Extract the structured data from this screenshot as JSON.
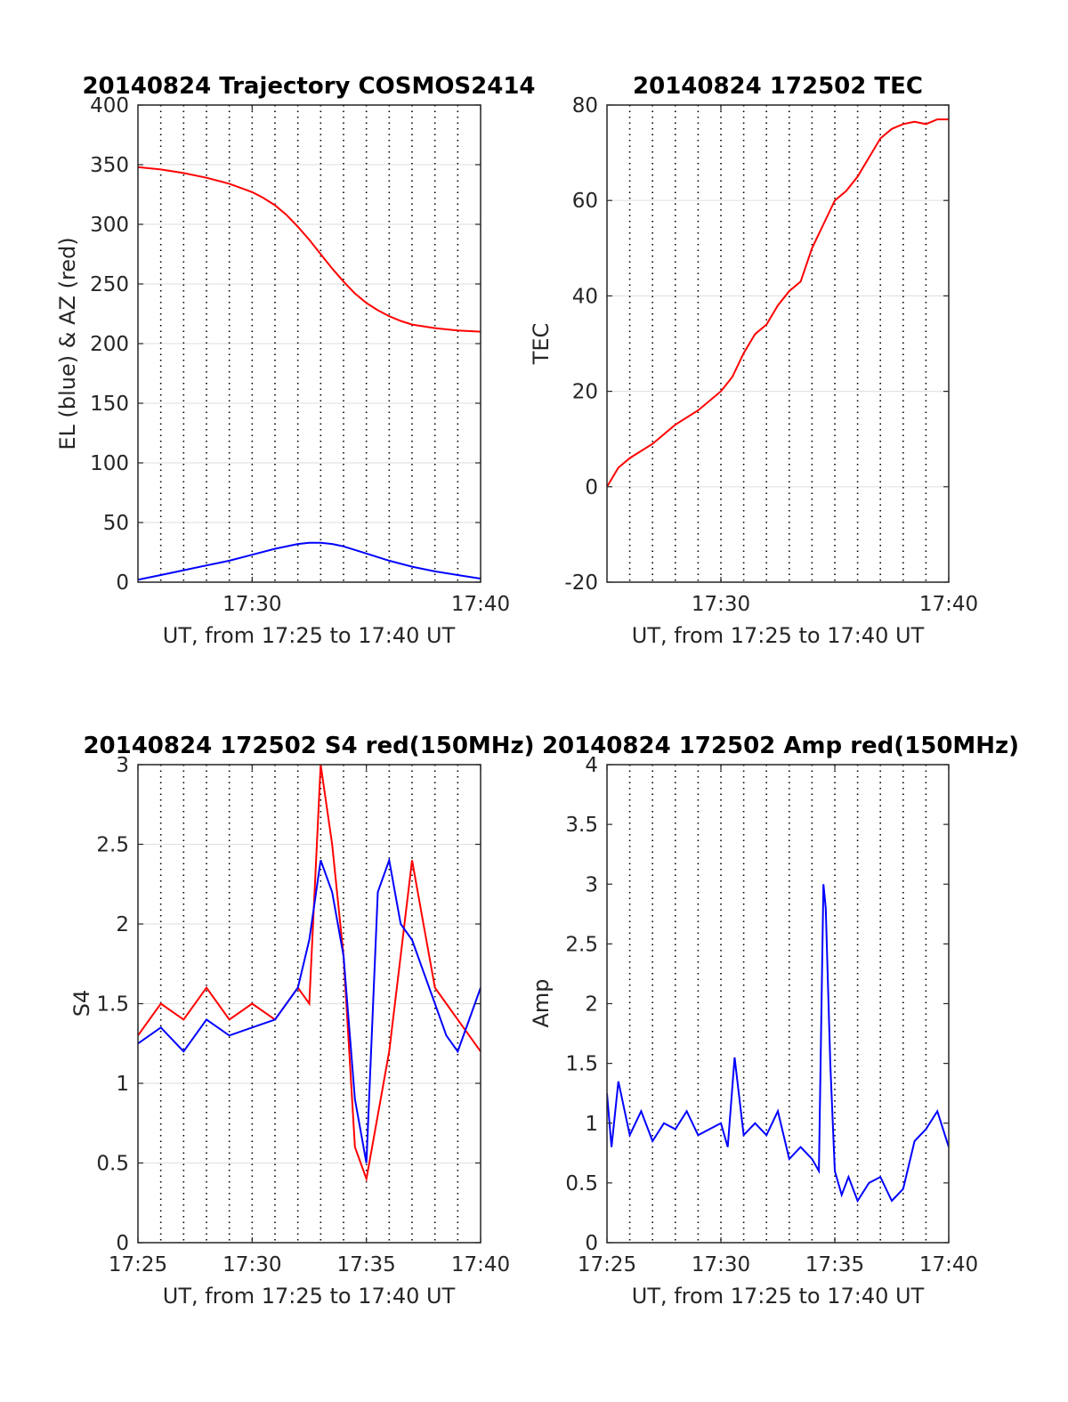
{
  "figure": {
    "background": "#ffffff"
  },
  "chart_data": [
    {
      "type": "line",
      "title": "20140824 Trajectory COSMOS2414",
      "xlabel": "UT, from 17:25 to 17:40 UT",
      "ylabel": "EL (blue) & AZ (red)",
      "xlim": [
        25,
        40
      ],
      "ylim": [
        0,
        400
      ],
      "yticks": [
        "0",
        "50",
        "100",
        "150",
        "200",
        "250",
        "300",
        "350",
        "400"
      ],
      "xticks": [
        {
          "v": 30,
          "label": "17:30"
        },
        {
          "v": 40,
          "label": "17:40"
        }
      ],
      "x_dotted_minutes": [
        26,
        27,
        28,
        29,
        30,
        31,
        32,
        33,
        34,
        35,
        36,
        37,
        38,
        39
      ],
      "grid_y": true,
      "series": [
        {
          "color": "#ff0000",
          "x": [
            25,
            26,
            27,
            28,
            29,
            30,
            30.5,
            31,
            31.5,
            32,
            32.5,
            33,
            33.5,
            34,
            34.5,
            35,
            35.5,
            36,
            36.5,
            37,
            38,
            39,
            40
          ],
          "y": [
            348,
            346,
            343,
            339,
            334,
            327,
            322,
            316,
            308,
            298,
            287,
            275,
            263,
            252,
            242,
            234,
            228,
            223,
            219,
            216,
            213,
            211,
            210
          ]
        },
        {
          "color": "#0000ff",
          "x": [
            25,
            26,
            27,
            28,
            29,
            30,
            31,
            32,
            32.5,
            33,
            33.5,
            34,
            35,
            36,
            37,
            38,
            39,
            40
          ],
          "y": [
            2,
            6,
            10,
            14,
            18,
            23,
            28,
            32,
            33,
            33,
            32,
            30,
            24,
            18,
            13,
            9,
            6,
            3
          ]
        }
      ]
    },
    {
      "type": "line",
      "title": "20140824 172502 TEC",
      "xlabel": "UT, from 17:25 to 17:40 UT",
      "ylabel": "TEC",
      "xlim": [
        25,
        40
      ],
      "ylim": [
        -20,
        80
      ],
      "yticks": [
        "-20",
        "0",
        "20",
        "40",
        "60",
        "80"
      ],
      "xticks": [
        {
          "v": 30,
          "label": "17:30"
        },
        {
          "v": 40,
          "label": "17:40"
        }
      ],
      "x_dotted_minutes": [
        26,
        27,
        28,
        29,
        30,
        31,
        32,
        33,
        34,
        35,
        36,
        37,
        38,
        39
      ],
      "grid_y": true,
      "series": [
        {
          "color": "#ff0000",
          "x": [
            25,
            25.5,
            26,
            27,
            28,
            29,
            30,
            30.5,
            31,
            31.5,
            32,
            32.5,
            33,
            33.5,
            34,
            34.5,
            35,
            35.5,
            36,
            36.5,
            37,
            37.5,
            38,
            38.5,
            39,
            39.5,
            40
          ],
          "y": [
            0,
            4,
            6,
            9,
            13,
            16,
            20,
            23,
            28,
            32,
            34,
            38,
            41,
            43,
            50,
            55,
            60,
            62,
            65,
            69,
            73,
            75,
            76,
            76.5,
            76,
            77,
            77
          ]
        }
      ]
    },
    {
      "type": "line",
      "title": "20140824 172502 S4 red(150MHz)",
      "xlabel": "UT, from 17:25 to 17:40 UT",
      "ylabel": "S4",
      "xlim": [
        25,
        40
      ],
      "ylim": [
        0,
        3
      ],
      "yticks": [
        "0",
        "0.5",
        "1",
        "1.5",
        "2",
        "2.5",
        "3"
      ],
      "xticks": [
        {
          "v": 25,
          "label": "17:25"
        },
        {
          "v": 30,
          "label": "17:30"
        },
        {
          "v": 35,
          "label": "17:35"
        },
        {
          "v": 40,
          "label": "17:40"
        }
      ],
      "x_dotted_minutes": [
        26,
        27,
        28,
        29,
        30,
        31,
        32,
        33,
        34,
        35,
        36,
        37,
        38,
        39
      ],
      "grid_y": true,
      "series": [
        {
          "color": "#ff0000",
          "x": [
            25,
            26,
            27,
            28,
            29,
            30,
            31,
            32,
            32.5,
            33,
            33.5,
            34,
            34.5,
            35,
            35.5,
            36,
            36.5,
            37,
            37.5,
            38,
            38.5,
            39,
            39.5,
            40
          ],
          "y": [
            1.3,
            1.5,
            1.4,
            1.6,
            1.4,
            1.5,
            1.4,
            1.6,
            1.5,
            3,
            2.5,
            1.8,
            0.6,
            0.4,
            0.8,
            1.2,
            1.8,
            2.4,
            2.0,
            1.6,
            1.5,
            1.4,
            1.3,
            1.2
          ]
        },
        {
          "color": "#0000ff",
          "x": [
            25,
            26,
            27,
            28,
            29,
            30,
            31,
            32,
            32.5,
            33,
            33.5,
            34,
            34.5,
            35,
            35.5,
            36,
            36.5,
            37,
            37.5,
            38,
            38.5,
            39,
            39.5,
            40
          ],
          "y": [
            1.25,
            1.35,
            1.2,
            1.4,
            1.3,
            1.35,
            1.4,
            1.6,
            1.9,
            2.4,
            2.2,
            1.8,
            0.9,
            0.5,
            2.2,
            2.4,
            2.0,
            1.9,
            1.7,
            1.5,
            1.3,
            1.2,
            1.4,
            1.6
          ]
        }
      ]
    },
    {
      "type": "line",
      "title": "20140824 172502 Amp red(150MHz)",
      "xlabel": "UT, from 17:25 to 17:40 UT",
      "ylabel": "Amp",
      "xlim": [
        25,
        40
      ],
      "ylim": [
        0,
        4
      ],
      "yticks": [
        "0",
        "0.5",
        "1",
        "1.5",
        "2",
        "2.5",
        "3",
        "3.5",
        "4"
      ],
      "xticks": [
        {
          "v": 25,
          "label": "17:25"
        },
        {
          "v": 30,
          "label": "17:30"
        },
        {
          "v": 35,
          "label": "17:35"
        },
        {
          "v": 40,
          "label": "17:40"
        }
      ],
      "x_dotted_minutes": [
        26,
        27,
        28,
        29,
        30,
        31,
        32,
        33,
        34,
        35,
        36,
        37,
        38,
        39
      ],
      "grid_y": false,
      "series": [
        {
          "color": "#0000ff",
          "x": [
            25,
            25.2,
            25.5,
            26,
            26.5,
            27,
            27.5,
            28,
            28.5,
            29,
            29.5,
            30,
            30.3,
            30.6,
            31,
            31.5,
            32,
            32.5,
            33,
            33.5,
            34,
            34.3,
            34.5,
            34.6,
            34.8,
            35,
            35.3,
            35.6,
            36,
            36.5,
            37,
            37.5,
            38,
            38.5,
            39,
            39.5,
            40
          ],
          "y": [
            1.25,
            0.8,
            1.35,
            0.9,
            1.1,
            0.85,
            1.0,
            0.95,
            1.1,
            0.9,
            0.95,
            1.0,
            0.8,
            1.55,
            0.9,
            1.0,
            0.9,
            1.1,
            0.7,
            0.8,
            0.7,
            0.6,
            3.0,
            2.8,
            1.5,
            0.6,
            0.4,
            0.55,
            0.35,
            0.5,
            0.55,
            0.35,
            0.45,
            0.85,
            0.95,
            1.1,
            0.8
          ]
        }
      ]
    }
  ]
}
